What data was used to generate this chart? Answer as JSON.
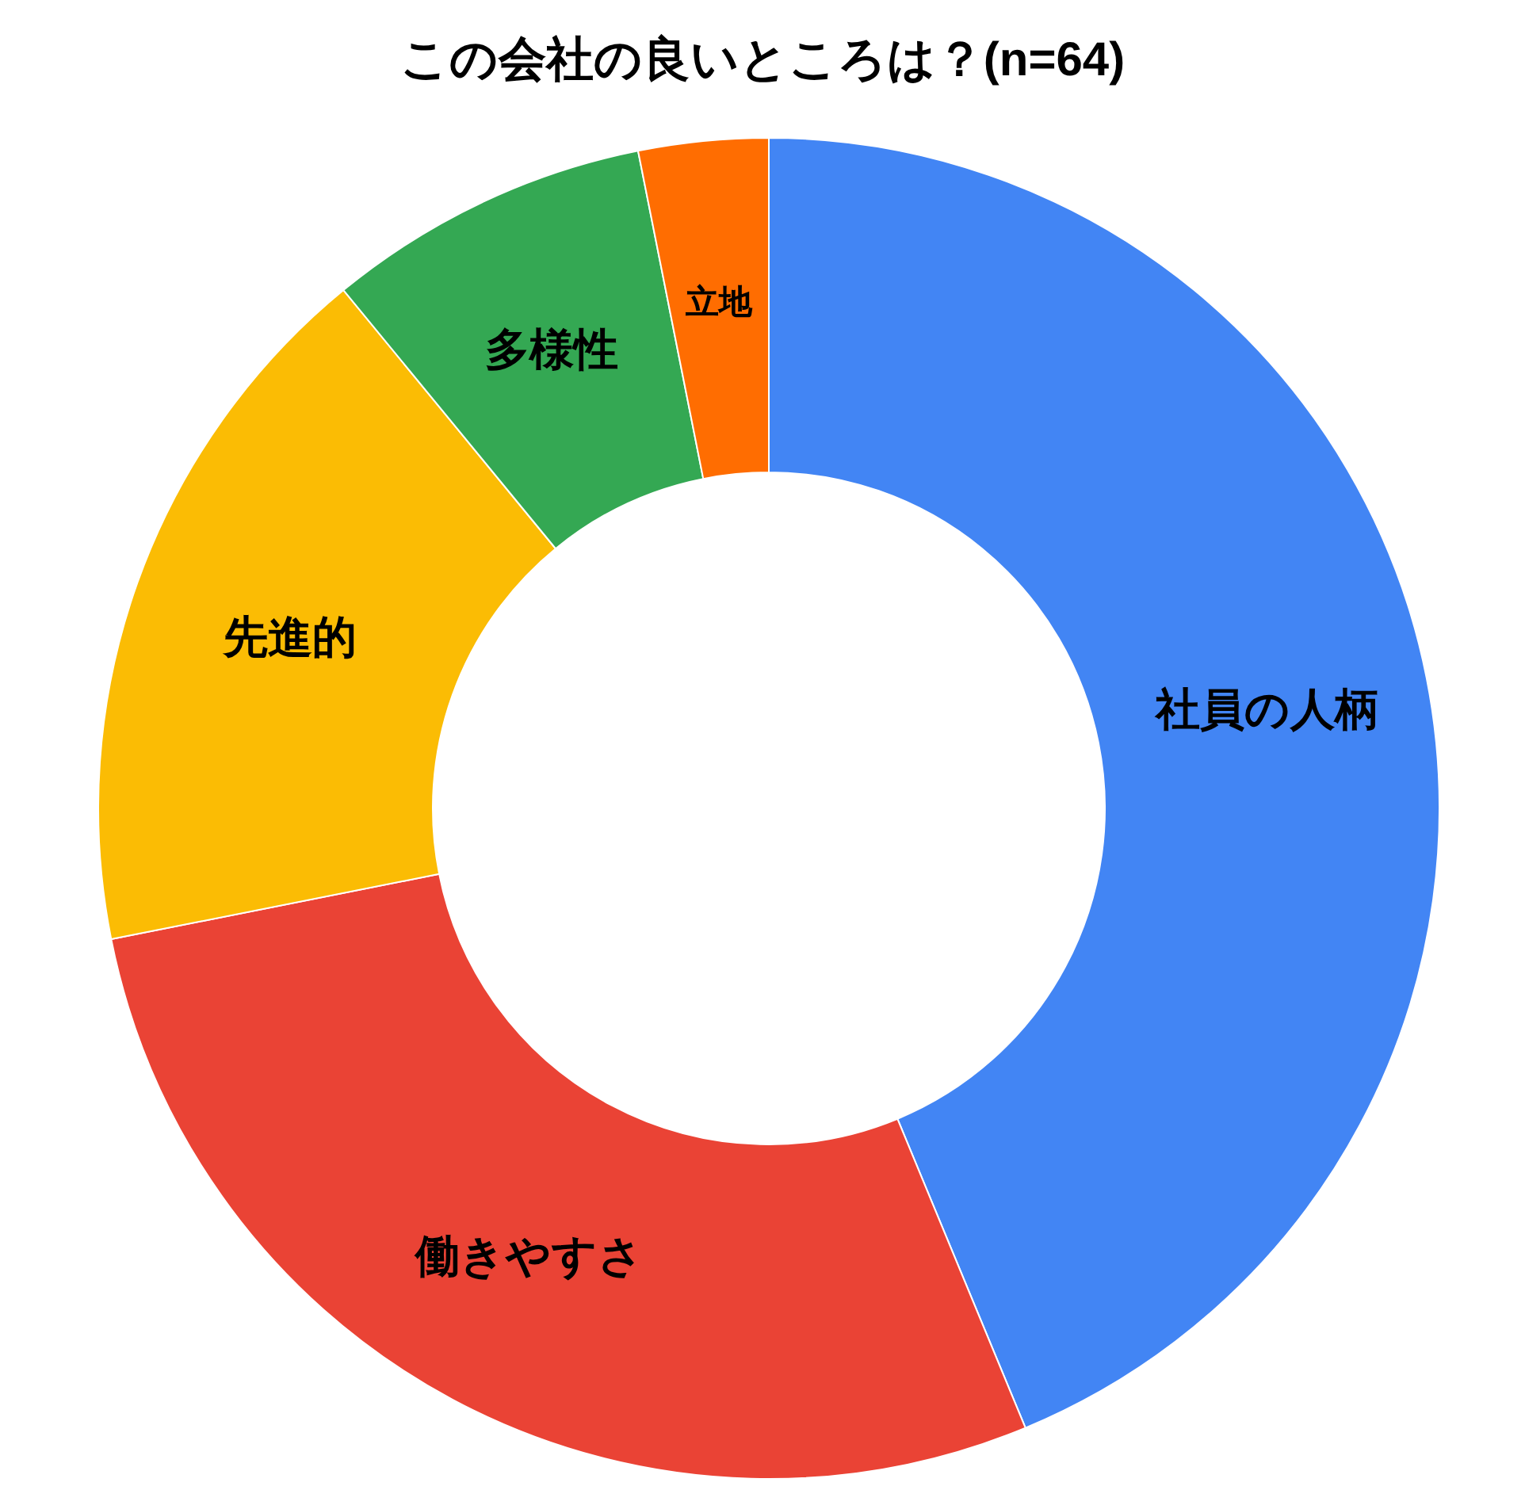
{
  "chart_data": {
    "type": "donut",
    "title": "この会社の良いところは？(n=64)",
    "categories": [
      "社員の人柄",
      "働きやすさ",
      "先進的",
      "多様性",
      "立地"
    ],
    "values": [
      43.75,
      28.125,
      17.1875,
      7.8125,
      3.125
    ],
    "colors": [
      "#4285f4",
      "#ea4335",
      "#fbbc04",
      "#34a853",
      "#ff6d01"
    ],
    "legend": false
  }
}
